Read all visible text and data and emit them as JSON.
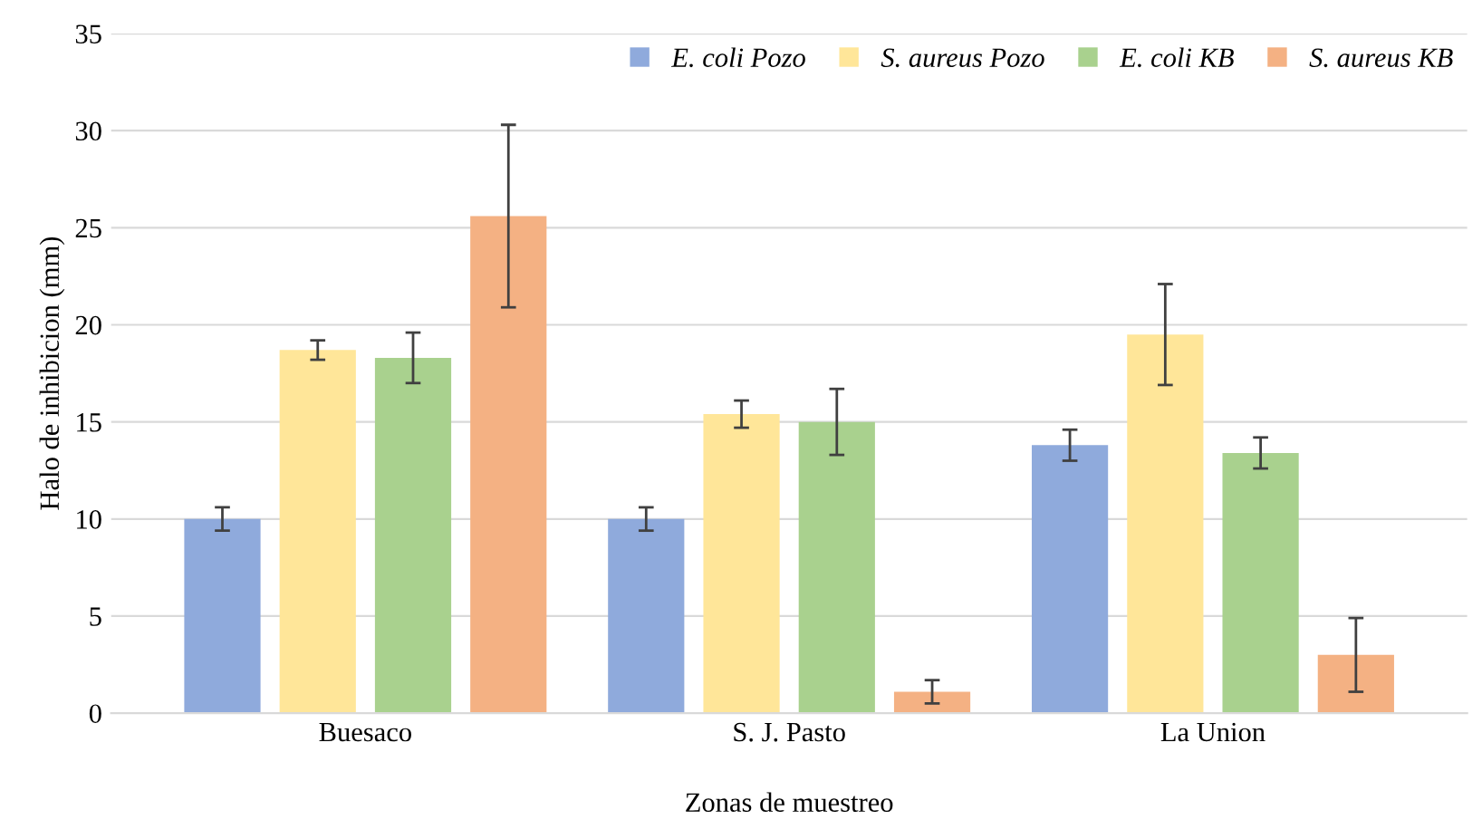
{
  "chart_data": {
    "type": "bar",
    "xlabel": "Zonas de muestreo",
    "ylabel": "Halo de inhibicion (mm)",
    "categories": [
      "Buesaco",
      "S. J. Pasto",
      "La Union"
    ],
    "series": [
      {
        "name": "E. coli Pozo",
        "color": "#8faadc",
        "values": [
          10.0,
          10.0,
          13.8
        ],
        "errors": [
          0.6,
          0.6,
          0.8
        ]
      },
      {
        "name": "S. aureus Pozo",
        "color": "#ffe699",
        "values": [
          18.7,
          15.4,
          19.5
        ],
        "errors": [
          0.5,
          0.7,
          2.6
        ]
      },
      {
        "name": "E. coli KB",
        "color": "#a9d18e",
        "values": [
          18.3,
          15.0,
          13.4
        ],
        "errors": [
          1.3,
          1.7,
          0.8
        ]
      },
      {
        "name": "S. aureus KB",
        "color": "#f4b183",
        "values": [
          25.6,
          1.1,
          3.0
        ],
        "errors": [
          4.7,
          0.6,
          1.9
        ]
      }
    ],
    "ylim": [
      0,
      35
    ],
    "yticks": [
      0,
      5,
      10,
      15,
      20,
      25,
      30,
      35
    ],
    "grid": "y",
    "legend": "top right"
  }
}
